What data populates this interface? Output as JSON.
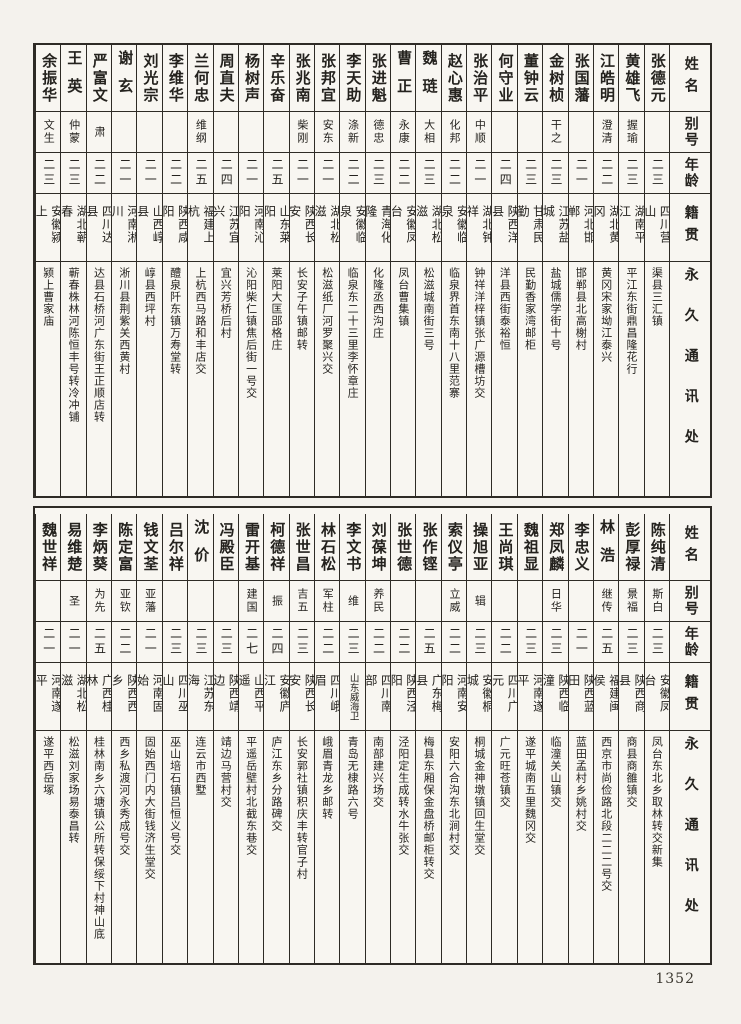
{
  "page": {
    "number": "1352"
  },
  "headers": {
    "name": "姓名",
    "alias": "别号",
    "age": "年龄",
    "native": "籍贯",
    "address": "永久通讯处"
  },
  "tables": [
    {
      "id": "top",
      "persons": [
        {
          "name": "张德元",
          "alias": "",
          "age": "二三",
          "native": "四川营山",
          "address": "渠县三汇镇"
        },
        {
          "name": "黄雄飞",
          "alias": "握瑜",
          "age": "二三",
          "native": "湖南平江",
          "address": "平江东街鼎昌隆花行"
        },
        {
          "name": "江皓明",
          "alias": "澄清",
          "age": "二二",
          "native": "湖北黄冈",
          "address": "黄冈宋家坳江泰兴"
        },
        {
          "name": "张国藩",
          "alias": "",
          "age": "二一",
          "native": "河北邯郸",
          "address": "邯郸县北高榭村"
        },
        {
          "name": "金树桢",
          "alias": "干之",
          "age": "二三",
          "native": "江苏盐城",
          "address": "盐城儒学街十号"
        },
        {
          "name": "董钟云",
          "alias": "",
          "age": "二三",
          "native": "甘肃民勤",
          "address": "民勤香家湾邮柜"
        },
        {
          "name": "何守业",
          "alias": "",
          "age": "二四",
          "native": "陕西洋县",
          "address": "洋县西街泰裕恒"
        },
        {
          "name": "张治平",
          "alias": "中顺",
          "age": "二一",
          "native": "湖北钟祥",
          "address": "钟祥洋梓镇张广源槽坊交"
        },
        {
          "name": "赵心惠",
          "alias": "化邦",
          "age": "二二",
          "native": "安徽临泉",
          "address": "临泉界首东南十八里范寨"
        },
        {
          "name": "魏琏",
          "alias": "大相",
          "age": "二三",
          "native": "湖北松滋",
          "address": "松滋城南街三号"
        },
        {
          "name": "曹正",
          "alias": "永康",
          "age": "二二",
          "native": "安徽凤台",
          "address": "凤台曹集镇"
        },
        {
          "name": "张进魁",
          "alias": "德忠",
          "age": "二三",
          "native": "青海化隆",
          "address": "化隆丞西沟庄"
        },
        {
          "name": "李天助",
          "alias": "涤新",
          "age": "二二",
          "native": "安徽临泉",
          "address": "临泉东二十三里李怀章庄"
        },
        {
          "name": "张邦宜",
          "alias": "安东",
          "age": "二一",
          "native": "湖北松滋",
          "address": "松滋纸厂河罗聚兴交"
        },
        {
          "name": "张兆南",
          "alias": "柴刚",
          "age": "二一",
          "native": "陕西长安",
          "address": "长安子午镇邮转"
        },
        {
          "name": "辛乐奋",
          "alias": "",
          "age": "二五",
          "native": "山东莱阳",
          "address": "莱阳大匡郘格庄"
        },
        {
          "name": "杨树声",
          "alias": "",
          "age": "二一",
          "native": "河南沁阳",
          "address": "沁阳柴仁镇焦后街一号交"
        },
        {
          "name": "周直夫",
          "alias": "",
          "age": "二四",
          "native": "江苏宜兴",
          "address": "宜兴芳桥后村"
        },
        {
          "name": "兰何忠",
          "alias": "维纲",
          "age": "二五",
          "native": "福建上杭",
          "address": "上杭西马路和丰店交"
        },
        {
          "name": "李维华",
          "alias": "",
          "age": "二二",
          "native": "陕西咸阳",
          "address": "醴泉阡东镇万寿堂转"
        },
        {
          "name": "刘光宗",
          "alias": "",
          "age": "二一",
          "native": "山西崞县",
          "address": "崞县西坪村"
        },
        {
          "name": "谢玄",
          "alias": "",
          "age": "二一",
          "native": "河南淅川",
          "address": "淅川县荆紫关西黄村"
        },
        {
          "name": "严富文",
          "alias": "肃",
          "age": "二二",
          "native": "四川达县",
          "address": "达县石桥河广东街王正顺店转"
        },
        {
          "name": "王英",
          "alias": "仲蒙",
          "age": "二三",
          "native": "湖北蕲春",
          "address": "蕲春株林河陈恒丰号转冷冲铺"
        },
        {
          "name": "余振华",
          "alias": "文生",
          "age": "二三",
          "native": "安徽颍上",
          "address": "颍上曹家庙"
        }
      ]
    },
    {
      "id": "bottom",
      "persons": [
        {
          "name": "陈纯清",
          "alias": "斯白",
          "age": "二三",
          "native": "安徽凤台",
          "address": "凤台东北乡取林转交新集"
        },
        {
          "name": "彭厚禄",
          "alias": "景福",
          "age": "二三",
          "native": "陕西商县",
          "address": "商县商雒镇交"
        },
        {
          "name": "林浩",
          "alias": "继传",
          "age": "二五",
          "native": "福建闽侯",
          "address": "西京市尚俭路北段二二二号交"
        },
        {
          "name": "李忠义",
          "alias": "",
          "age": "二一",
          "native": "陕西蓝田",
          "address": "蓝田孟村乡姚村交"
        },
        {
          "name": "郑凤麟",
          "alias": "日华",
          "age": "二三",
          "native": "陕西临潼",
          "address": "临潼关山镇交"
        },
        {
          "name": "魏祖显",
          "alias": "",
          "age": "二三",
          "native": "河南遂平",
          "address": "遂平城南五里魏冈交"
        },
        {
          "name": "王尚琪",
          "alias": "",
          "age": "二二",
          "native": "四川广元",
          "address": "广元旺苍镇交"
        },
        {
          "name": "操旭亚",
          "alias": "辑",
          "age": "二三",
          "native": "安徽桐城",
          "address": "桐城金神墩镇回生堂交"
        },
        {
          "name": "索仪亭",
          "alias": "立威",
          "age": "二二",
          "native": "河南安阳",
          "address": "安阳六合沟东北涧村交"
        },
        {
          "name": "张作铿",
          "alias": "",
          "age": "二五",
          "native": "广东梅县",
          "address": "梅县东厢保金盘桥邮柜转交"
        },
        {
          "name": "张世德",
          "alias": "",
          "age": "二二",
          "native": "陕西泾阳",
          "address": "泾阳定生成转水牛张交"
        },
        {
          "name": "刘葆坤",
          "alias": "养民",
          "age": "二二",
          "native": "四川南部",
          "address": "南部建兴场交"
        },
        {
          "name": "李文书",
          "alias": "维",
          "age": "二三",
          "native": "山东威海卫",
          "address": "青岛无棣路六号"
        },
        {
          "name": "林石松",
          "alias": "军柱",
          "age": "二二",
          "native": "四川峨眉",
          "address": "峨眉青龙乡邮转"
        },
        {
          "name": "张世昌",
          "alias": "吉五",
          "age": "二三",
          "native": "陕西长安",
          "address": "长安郭社镇积庆丰转官子村"
        },
        {
          "name": "柯德祥",
          "alias": "振",
          "age": "二四",
          "native": "安徽庐江",
          "address": "庐江东乡分路碑交"
        },
        {
          "name": "雷开基",
          "alias": "建国",
          "age": "二七",
          "native": "山西平遥",
          "address": "平遥岳壁村北截东巷交"
        },
        {
          "name": "冯殿臣",
          "alias": "",
          "age": "二三",
          "native": "陕西靖边",
          "address": "靖边马营村交"
        },
        {
          "name": "沈价",
          "alias": "",
          "age": "二三",
          "native": "江苏东海",
          "address": "连云市西墅"
        },
        {
          "name": "吕尔祥",
          "alias": "",
          "age": "二三",
          "native": "四川巫山",
          "address": "巫山培石镇吕恒义号交"
        },
        {
          "name": "钱文荃",
          "alias": "亚藩",
          "age": "二一",
          "native": "河南固始",
          "address": "固始西门内大街钱济生堂交"
        },
        {
          "name": "陈定富",
          "alias": "亚钦",
          "age": "二二",
          "native": "陕西西乡",
          "address": "西乡私渡河永秀成号交"
        },
        {
          "name": "李炳葵",
          "alias": "为先",
          "age": "二五",
          "native": "广西桂林",
          "address": "桂林南乡六塘镇公所转保绥下村神山底"
        },
        {
          "name": "易维楚",
          "alias": "圣",
          "age": "二一",
          "native": "湖北松滋",
          "address": "松滋刘家场易泰昌转"
        },
        {
          "name": "魏世祥",
          "alias": "",
          "age": "二一",
          "native": "河南遂平",
          "address": "遂平西岳塚"
        }
      ]
    }
  ]
}
